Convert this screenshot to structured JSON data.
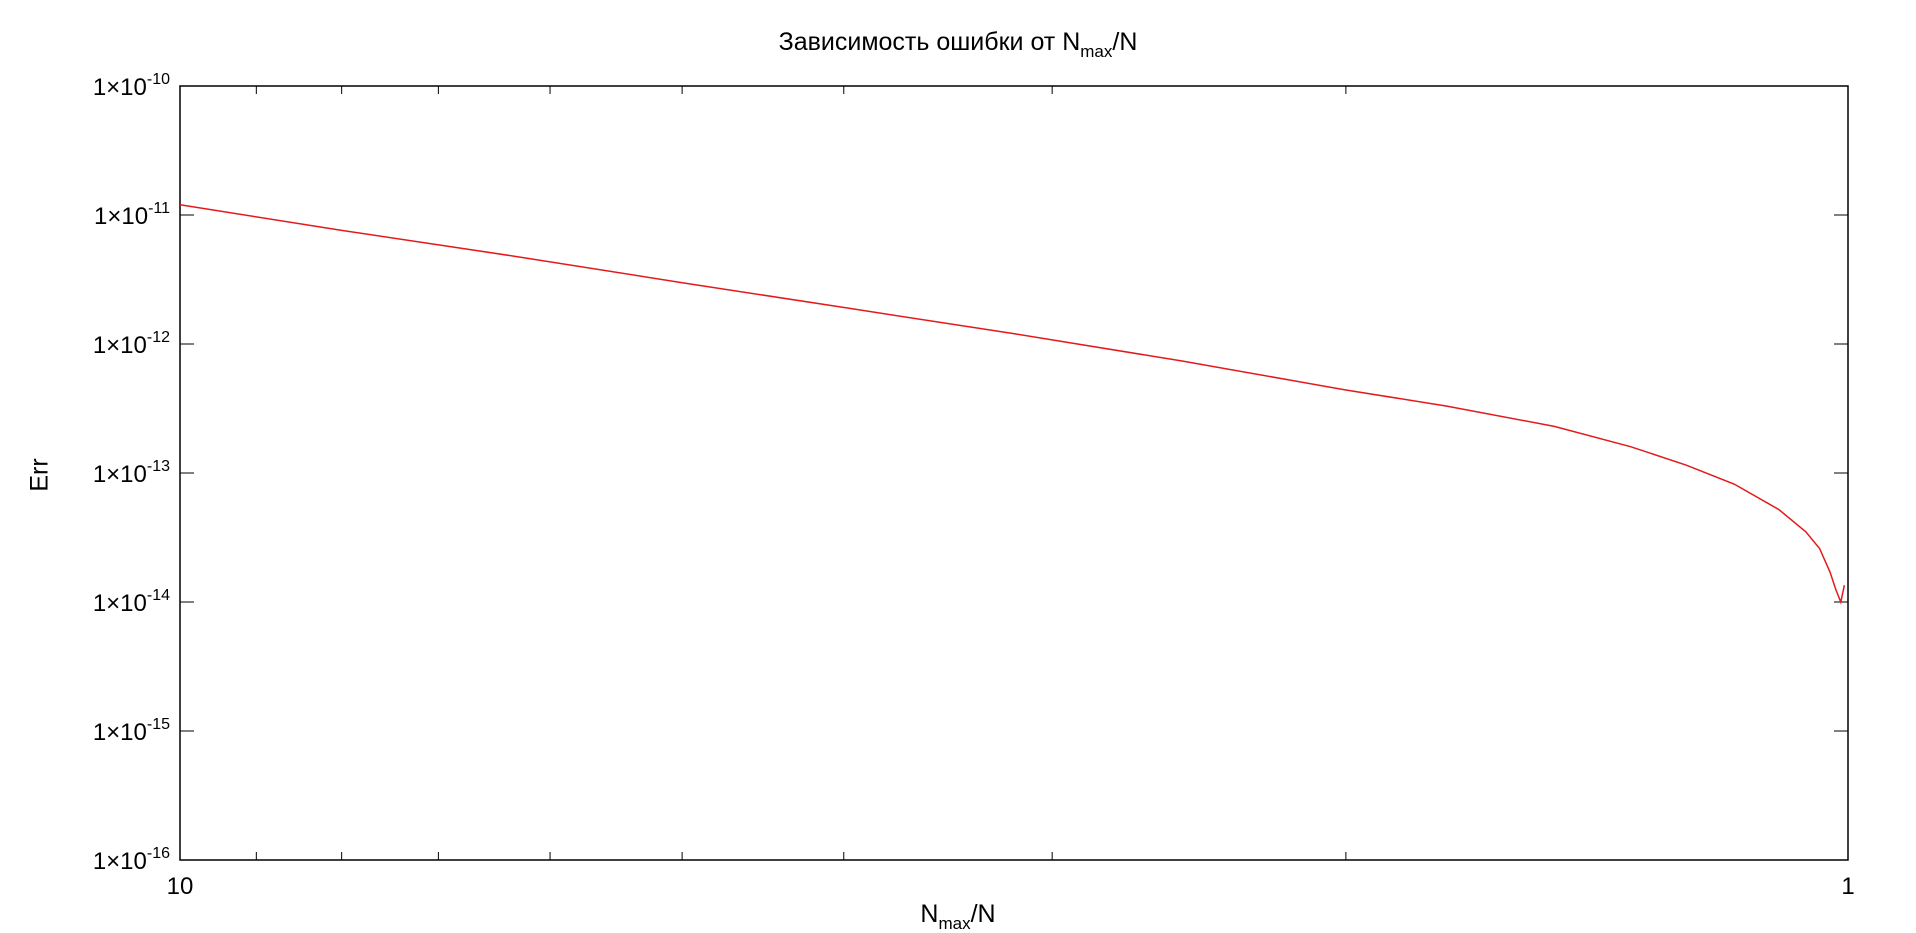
{
  "chart_data": {
    "type": "line",
    "title": {
      "prefix": "Зависимость ошибки от N",
      "sub": "max",
      "suffix": "/N"
    },
    "xlabel": {
      "prefix": "N",
      "sub": "max",
      "suffix": "/N"
    },
    "ylabel": "Err",
    "x_scale": "log",
    "y_scale": "log",
    "x_reversed": true,
    "xlim": [
      10,
      1
    ],
    "ylim": [
      1e-16,
      1e-10
    ],
    "grid": false,
    "x_ticks": [
      {
        "value": 10,
        "label": "10"
      },
      {
        "value": 1,
        "label": "1"
      }
    ],
    "y_ticks": [
      {
        "value": 1e-16,
        "mantissa": "1×10",
        "exponent": "-16"
      },
      {
        "value": 1e-15,
        "mantissa": "1×10",
        "exponent": "-15"
      },
      {
        "value": 1e-14,
        "mantissa": "1×10",
        "exponent": "-14"
      },
      {
        "value": 1e-13,
        "mantissa": "1×10",
        "exponent": "-13"
      },
      {
        "value": 1e-12,
        "mantissa": "1×10",
        "exponent": "-12"
      },
      {
        "value": 1e-11,
        "mantissa": "1×10",
        "exponent": "-11"
      },
      {
        "value": 1e-10,
        "mantissa": "1×10",
        "exponent": "-10"
      }
    ],
    "series": [
      {
        "color": "#e31a1c",
        "x": [
          10,
          8.0,
          6.31,
          5.01,
          3.98,
          3.16,
          2.51,
          2.0,
          1.74,
          1.5,
          1.35,
          1.25,
          1.17,
          1.1,
          1.06,
          1.04,
          1.025,
          1.017,
          1.01,
          1.005
        ],
        "y": [
          1.2e-11,
          7.6e-12,
          4.8e-12,
          3e-12,
          1.9e-12,
          1.2e-12,
          7.4e-13,
          4.4e-13,
          3.3e-13,
          2.3e-13,
          1.6e-13,
          1.15e-13,
          8.2e-14,
          5.2e-14,
          3.5e-14,
          2.6e-14,
          1.7e-14,
          1.25e-14,
          1e-14,
          1.35e-14
        ]
      }
    ]
  }
}
